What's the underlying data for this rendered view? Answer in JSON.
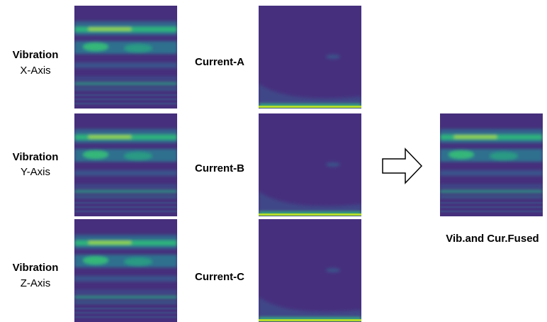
{
  "rows": [
    {
      "vibration": {
        "title": "Vibration",
        "axis": "X-Axis"
      },
      "current": "Current-A"
    },
    {
      "vibration": {
        "title": "Vibration",
        "axis": "Y-Axis"
      },
      "current": "Current-B"
    },
    {
      "vibration": {
        "title": "Vibration",
        "axis": "Z-Axis"
      },
      "current": "Current-C"
    }
  ],
  "fused_label": "Vib.and Cur.Fused"
}
